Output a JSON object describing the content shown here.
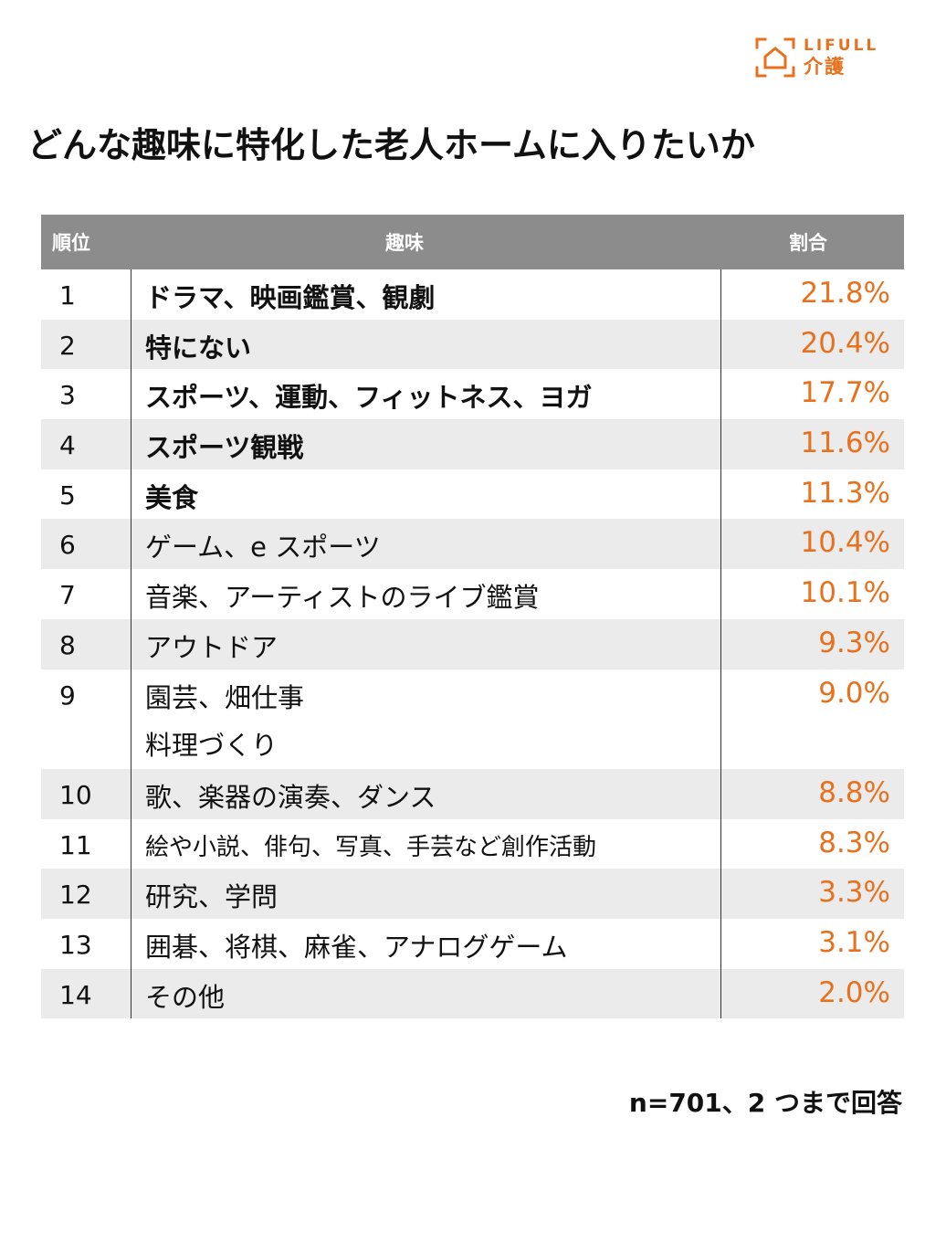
{
  "brand": {
    "name_en": "LIFULL",
    "name_jp": "介護",
    "color": "#e8711e"
  },
  "chart_data": {
    "type": "table",
    "title": "どんな趣味に特化した老人ホームに入りたいか",
    "columns": [
      "順位",
      "趣味",
      "割合"
    ],
    "rows": [
      {
        "rank": "1",
        "hobby": [
          "ドラマ、映画鑑賞、観劇"
        ],
        "share": "21.8%",
        "value": 21.8,
        "bold": true
      },
      {
        "rank": "2",
        "hobby": [
          "特にない"
        ],
        "share": "20.4%",
        "value": 20.4,
        "bold": true
      },
      {
        "rank": "3",
        "hobby": [
          "スポーツ、運動、フィットネス、ヨガ"
        ],
        "share": "17.7%",
        "value": 17.7,
        "bold": true
      },
      {
        "rank": "4",
        "hobby": [
          "スポーツ観戦"
        ],
        "share": "11.6%",
        "value": 11.6,
        "bold": true
      },
      {
        "rank": "5",
        "hobby": [
          "美食"
        ],
        "share": "11.3%",
        "value": 11.3,
        "bold": true
      },
      {
        "rank": "6",
        "hobby": [
          "ゲーム、e スポーツ"
        ],
        "share": "10.4%",
        "value": 10.4,
        "bold": false
      },
      {
        "rank": "7",
        "hobby": [
          "音楽、アーティストのライブ鑑賞"
        ],
        "share": "10.1%",
        "value": 10.1,
        "bold": false
      },
      {
        "rank": "8",
        "hobby": [
          "アウトドア"
        ],
        "share": "9.3%",
        "value": 9.3,
        "bold": false
      },
      {
        "rank": "9",
        "hobby": [
          "園芸、畑仕事",
          "料理づくり"
        ],
        "share": "9.0%",
        "value": 9.0,
        "bold": false
      },
      {
        "rank": "10",
        "hobby": [
          "歌、楽器の演奏、ダンス"
        ],
        "share": "8.8%",
        "value": 8.8,
        "bold": false
      },
      {
        "rank": "11",
        "hobby": [
          "絵や小説、俳句、写真、手芸など創作活動"
        ],
        "share": "8.3%",
        "value": 8.3,
        "bold": false,
        "small": true
      },
      {
        "rank": "12",
        "hobby": [
          "研究、学問"
        ],
        "share": "3.3%",
        "value": 3.3,
        "bold": false
      },
      {
        "rank": "13",
        "hobby": [
          "囲碁、将棋、麻雀、アナログゲーム"
        ],
        "share": "3.1%",
        "value": 3.1,
        "bold": false
      },
      {
        "rank": "14",
        "hobby": [
          "その他"
        ],
        "share": "2.0%",
        "value": 2.0,
        "bold": false
      }
    ]
  },
  "note": "n=701、2 つまで回答"
}
